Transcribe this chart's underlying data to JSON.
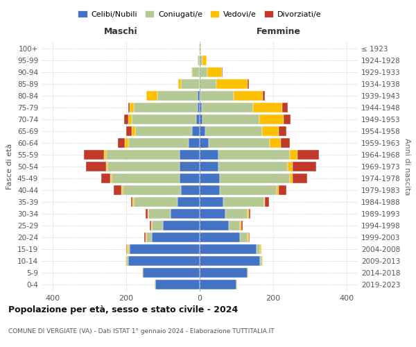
{
  "age_groups": [
    "0-4",
    "5-9",
    "10-14",
    "15-19",
    "20-24",
    "25-29",
    "30-34",
    "35-39",
    "40-44",
    "45-49",
    "50-54",
    "55-59",
    "60-64",
    "65-69",
    "70-74",
    "75-79",
    "80-84",
    "85-89",
    "90-94",
    "95-99",
    "100+"
  ],
  "birth_years": [
    "2019-2023",
    "2014-2018",
    "2009-2013",
    "2004-2008",
    "1999-2003",
    "1994-1998",
    "1989-1993",
    "1984-1988",
    "1979-1983",
    "1974-1978",
    "1969-1973",
    "1964-1968",
    "1959-1963",
    "1954-1958",
    "1949-1953",
    "1944-1948",
    "1939-1943",
    "1934-1938",
    "1929-1933",
    "1924-1928",
    "≤ 1923"
  ],
  "males": {
    "celibi": [
      120,
      155,
      195,
      190,
      130,
      100,
      80,
      60,
      50,
      55,
      55,
      55,
      30,
      20,
      10,
      5,
      5,
      0,
      0,
      0,
      0
    ],
    "coniugati": [
      0,
      0,
      5,
      5,
      15,
      30,
      60,
      120,
      160,
      185,
      195,
      200,
      165,
      155,
      175,
      175,
      110,
      50,
      20,
      5,
      2
    ],
    "vedovi": [
      2,
      2,
      2,
      3,
      3,
      2,
      2,
      2,
      3,
      3,
      5,
      5,
      8,
      10,
      10,
      10,
      30,
      8,
      3,
      0,
      0
    ],
    "divorziati": [
      0,
      0,
      0,
      2,
      2,
      3,
      5,
      5,
      20,
      25,
      55,
      55,
      20,
      15,
      10,
      5,
      0,
      0,
      0,
      0,
      0
    ]
  },
  "females": {
    "nubili": [
      100,
      130,
      165,
      155,
      110,
      80,
      70,
      65,
      55,
      55,
      50,
      50,
      25,
      15,
      8,
      5,
      2,
      0,
      0,
      0,
      0
    ],
    "coniugate": [
      0,
      0,
      5,
      10,
      20,
      30,
      60,
      110,
      155,
      190,
      190,
      195,
      165,
      155,
      155,
      140,
      90,
      45,
      20,
      8,
      2
    ],
    "vedove": [
      2,
      2,
      2,
      3,
      3,
      3,
      3,
      3,
      5,
      8,
      12,
      20,
      30,
      45,
      65,
      80,
      80,
      85,
      40,
      10,
      2
    ],
    "divorziate": [
      0,
      0,
      0,
      0,
      2,
      3,
      5,
      10,
      20,
      40,
      65,
      60,
      25,
      20,
      20,
      15,
      5,
      3,
      2,
      0,
      0
    ]
  },
  "colors": {
    "celibi_nubili": "#4472c4",
    "coniugati": "#b5c994",
    "vedovi": "#ffc000",
    "divorziati": "#c0392b"
  },
  "title": "Popolazione per età, sesso e stato civile - 2024",
  "subtitle": "COMUNE DI VERGIATE (VA) - Dati ISTAT 1° gennaio 2024 - Elaborazione TUTTITALIA.IT",
  "xlabel_maschi": "Maschi",
  "xlabel_femmine": "Femmine",
  "ylabel_left": "Fasce di età",
  "ylabel_right": "Anni di nascita",
  "xlim": 430,
  "background_color": "#ffffff",
  "grid_color": "#cccccc"
}
